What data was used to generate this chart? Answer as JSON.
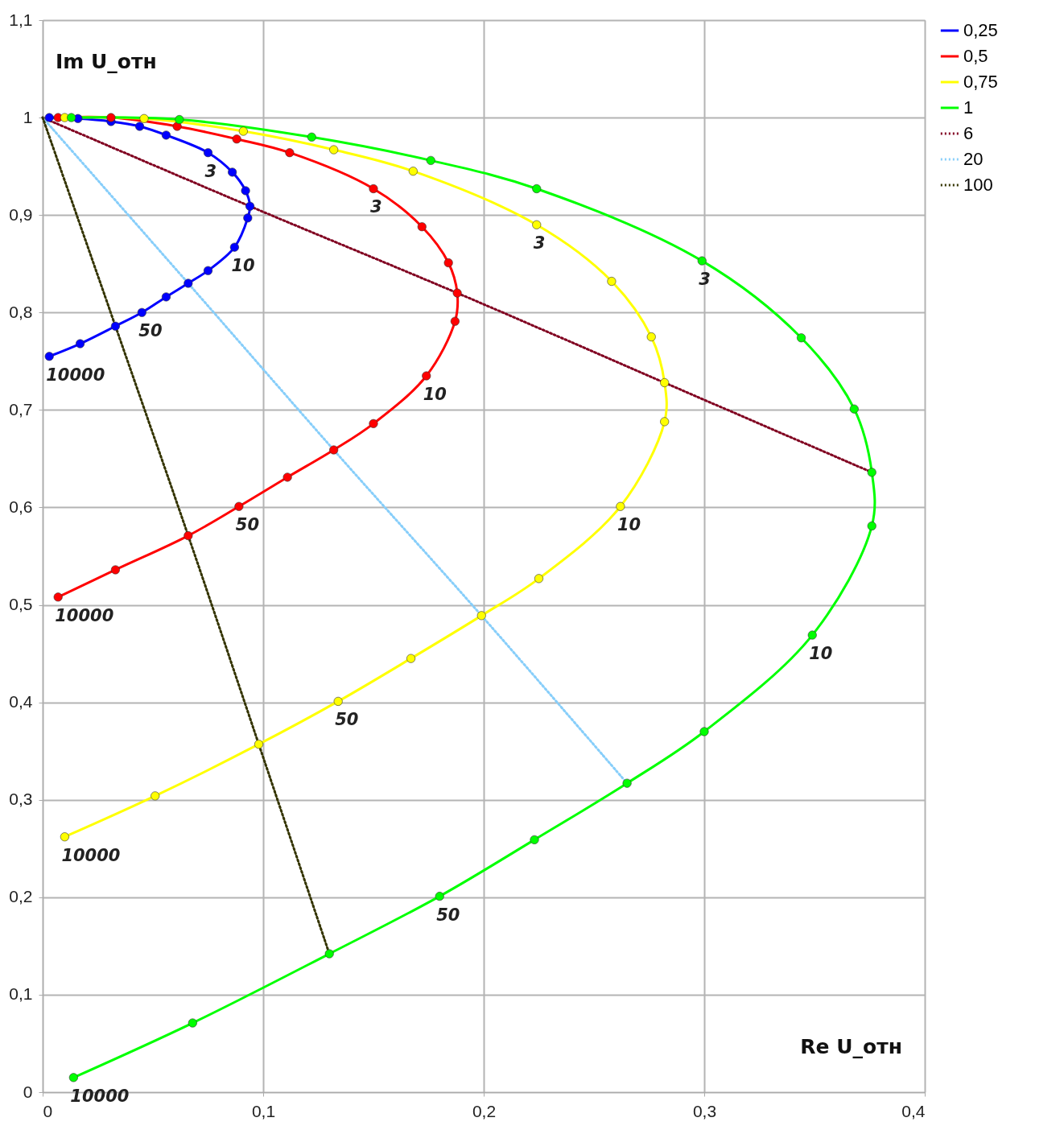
{
  "chart_data": {
    "type": "line",
    "xlabel": "Re U_отн",
    "ylabel": "Im U_отн",
    "xlim": [
      0,
      0.4
    ],
    "ylim": [
      0,
      1.1
    ],
    "xticks": [
      0,
      {
        "value": 0.1,
        "label": "0,1"
      },
      {
        "value": 0.2,
        "label": "0,2"
      },
      {
        "value": 0.3,
        "label": "0,3"
      },
      {
        "value": 0.4,
        "label": "0,4"
      }
    ],
    "yticks": [
      0,
      {
        "value": 0.1,
        "label": "0,1"
      },
      {
        "value": 0.2,
        "label": "0,2"
      },
      {
        "value": 0.3,
        "label": "0,3"
      },
      {
        "value": 0.4,
        "label": "0,4"
      },
      {
        "value": 0.5,
        "label": "0,5"
      },
      {
        "value": 0.6,
        "label": "0,6"
      },
      {
        "value": 0.7,
        "label": "0,7"
      },
      {
        "value": 0.8,
        "label": "0,8"
      },
      {
        "value": 0.9,
        "label": "0,9"
      },
      1,
      {
        "value": 1.1,
        "label": "1,1"
      }
    ],
    "grid": true,
    "legend": "right",
    "series": [
      {
        "name": "0,25",
        "color": "#0000ff",
        "marker": "circle",
        "line_style": "solid",
        "x": [
          0.003,
          0.016,
          0.031,
          0.044,
          0.056,
          0.075,
          0.086,
          0.092,
          0.094,
          0.093,
          0.087,
          0.075,
          0.066,
          0.056,
          0.045,
          0.033,
          0.017,
          0.003
        ],
        "values": [
          1.0,
          0.999,
          0.996,
          0.991,
          0.982,
          0.964,
          0.944,
          0.925,
          0.909,
          0.897,
          0.867,
          0.843,
          0.83,
          0.816,
          0.8,
          0.786,
          0.768,
          0.755
        ]
      },
      {
        "name": "0,5",
        "color": "#ff0000",
        "marker": "circle",
        "line_style": "solid",
        "x": [
          0.007,
          0.031,
          0.061,
          0.088,
          0.112,
          0.15,
          0.172,
          0.184,
          0.188,
          0.187,
          0.174,
          0.15,
          0.132,
          0.111,
          0.089,
          0.066,
          0.033,
          0.007
        ],
        "values": [
          1.0,
          1.0,
          0.991,
          0.978,
          0.964,
          0.927,
          0.888,
          0.851,
          0.82,
          0.791,
          0.735,
          0.686,
          0.659,
          0.631,
          0.601,
          0.571,
          0.536,
          0.508
        ]
      },
      {
        "name": "0,75",
        "color": "#ffff00",
        "marker": "circle",
        "line_style": "solid",
        "x": [
          0.01,
          0.046,
          0.091,
          0.132,
          0.168,
          0.224,
          0.258,
          0.276,
          0.282,
          0.282,
          0.262,
          0.225,
          0.199,
          0.167,
          0.134,
          0.098,
          0.051,
          0.01
        ],
        "values": [
          1.0,
          0.999,
          0.986,
          0.967,
          0.945,
          0.89,
          0.832,
          0.775,
          0.728,
          0.688,
          0.601,
          0.527,
          0.489,
          0.445,
          0.401,
          0.357,
          0.304,
          0.262
        ]
      },
      {
        "name": "1",
        "color": "#00ff00",
        "marker": "circle",
        "line_style": "solid",
        "x": [
          0.013,
          0.062,
          0.122,
          0.176,
          0.224,
          0.299,
          0.344,
          0.368,
          0.376,
          0.376,
          0.349,
          0.3,
          0.265,
          0.223,
          0.18,
          0.13,
          0.068,
          0.014
        ],
        "values": [
          1.0,
          0.998,
          0.98,
          0.956,
          0.927,
          0.853,
          0.774,
          0.701,
          0.636,
          0.581,
          0.469,
          0.37,
          0.317,
          0.259,
          0.201,
          0.142,
          0.071,
          0.015
        ]
      },
      {
        "name": "6",
        "color": "#800020",
        "line_style": "dotted",
        "x": [
          0,
          0.094,
          0.188,
          0.282,
          0.376
        ],
        "values": [
          1.0,
          0.909,
          0.82,
          0.728,
          0.636
        ]
      },
      {
        "name": "20",
        "color": "#87cefa",
        "line_style": "dotted",
        "x": [
          0,
          0.066,
          0.132,
          0.199,
          0.265
        ],
        "values": [
          1.0,
          0.83,
          0.659,
          0.489,
          0.317
        ]
      },
      {
        "name": "100",
        "color": "#333300",
        "line_style": "dotted",
        "x": [
          0,
          0.033,
          0.066,
          0.098,
          0.13
        ],
        "values": [
          1.0,
          0.786,
          0.571,
          0.357,
          0.142
        ]
      }
    ],
    "annotations": [
      {
        "text": "3",
        "x": 0.075,
        "y": 0.964
      },
      {
        "text": "10",
        "x": 0.087,
        "y": 0.867
      },
      {
        "text": "50",
        "x": 0.045,
        "y": 0.8
      },
      {
        "text": "10000",
        "x": 0.003,
        "y": 0.755
      },
      {
        "text": "3",
        "x": 0.15,
        "y": 0.927
      },
      {
        "text": "10",
        "x": 0.174,
        "y": 0.735
      },
      {
        "text": "50",
        "x": 0.089,
        "y": 0.601
      },
      {
        "text": "10000",
        "x": 0.007,
        "y": 0.508
      },
      {
        "text": "3",
        "x": 0.224,
        "y": 0.89
      },
      {
        "text": "10",
        "x": 0.262,
        "y": 0.601
      },
      {
        "text": "50",
        "x": 0.134,
        "y": 0.401
      },
      {
        "text": "10000",
        "x": 0.01,
        "y": 0.262
      },
      {
        "text": "3",
        "x": 0.299,
        "y": 0.853
      },
      {
        "text": "10",
        "x": 0.349,
        "y": 0.469
      },
      {
        "text": "50",
        "x": 0.18,
        "y": 0.201
      },
      {
        "text": "10000",
        "x": 0.014,
        "y": 0.015
      }
    ]
  }
}
